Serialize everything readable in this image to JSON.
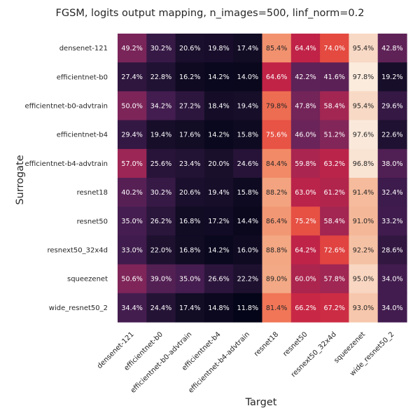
{
  "chart_data": {
    "type": "heatmap",
    "title": "FGSM, logits output mapping, n_images=500, linf_norm=0.2",
    "xlabel": "Target",
    "ylabel": "Surrogate",
    "x_categories": [
      "densenet-121",
      "efficientnet-b0",
      "efficientnet-b0-advtrain",
      "efficientnet-b4",
      "efficientnet-b4-advtrain",
      "resnet18",
      "resnet50",
      "resnext50_32x4d",
      "squeezenet",
      "wide_resnet50_2"
    ],
    "y_categories": [
      "densenet-121",
      "efficientnet-b0",
      "efficientnet-b0-advtrain",
      "efficientnet-b4",
      "efficientnet-b4-advtrain",
      "resnet18",
      "resnet50",
      "resnext50_32x4d",
      "squeezenet",
      "wide_resnet50_2"
    ],
    "values": [
      [
        49.2,
        30.2,
        20.6,
        19.8,
        17.4,
        85.4,
        64.4,
        74.0,
        95.4,
        42.8
      ],
      [
        27.4,
        22.8,
        16.2,
        14.2,
        14.0,
        64.6,
        42.2,
        41.6,
        97.8,
        19.2
      ],
      [
        50.0,
        34.2,
        27.2,
        18.4,
        19.4,
        79.8,
        47.8,
        58.4,
        95.4,
        29.6
      ],
      [
        29.4,
        19.4,
        17.6,
        14.2,
        15.8,
        75.6,
        46.0,
        51.2,
        97.6,
        22.6
      ],
      [
        57.0,
        25.6,
        23.4,
        20.0,
        24.6,
        84.4,
        59.8,
        63.2,
        96.8,
        38.0
      ],
      [
        40.2,
        30.2,
        20.6,
        19.4,
        15.8,
        88.2,
        63.0,
        61.2,
        91.4,
        32.4
      ],
      [
        35.0,
        26.2,
        16.8,
        17.2,
        14.4,
        86.4,
        75.2,
        58.4,
        91.0,
        33.2
      ],
      [
        33.0,
        22.0,
        16.8,
        14.2,
        16.0,
        88.8,
        64.2,
        72.6,
        92.2,
        28.6
      ],
      [
        50.6,
        39.0,
        35.0,
        26.6,
        22.2,
        89.0,
        60.0,
        57.8,
        95.0,
        34.0
      ],
      [
        34.4,
        24.4,
        17.4,
        14.8,
        11.8,
        81.4,
        66.2,
        67.2,
        93.0,
        34.0
      ]
    ],
    "value_format": "percent_1dp",
    "colormap": "rocket",
    "colorbar": false,
    "grid": false
  }
}
